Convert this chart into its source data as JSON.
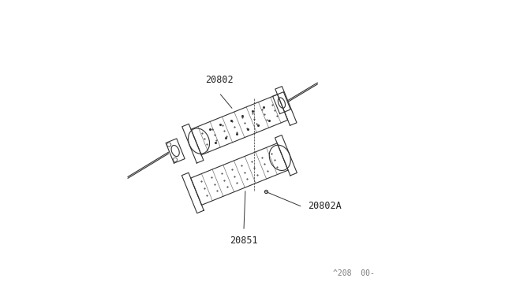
{
  "bg_color": "#ffffff",
  "line_color": "#333333",
  "label_color": "#222222",
  "fig_width": 6.4,
  "fig_height": 3.72,
  "dpi": 100,
  "watermark": "^208  00-",
  "labels": {
    "20802": [
      0.385,
      0.685
    ],
    "20802A": [
      0.685,
      0.295
    ],
    "20851": [
      0.47,
      0.195
    ]
  },
  "label_fontsize": 8.5
}
